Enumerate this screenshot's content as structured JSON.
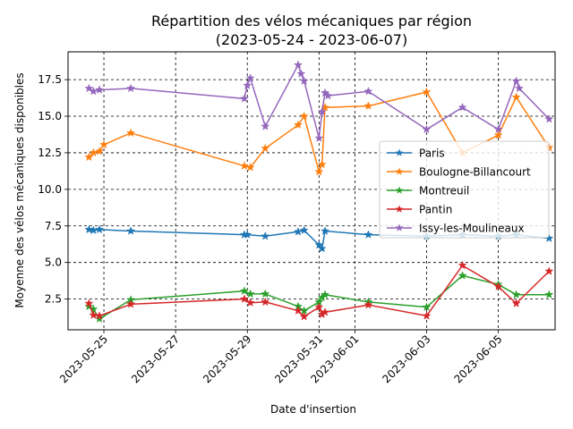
{
  "chart_data": {
    "type": "line",
    "title": "Répartition des vélos mécaniques par région",
    "subtitle": "(2023-05-24 - 2023-06-07)",
    "xlabel": "Date d'insertion",
    "ylabel": "Moyenne des vélos mécaniques disponibles",
    "x_ticks": [
      "2023-05-25",
      "2023-05-27",
      "2023-05-29",
      "2023-05-31",
      "2023-06-01",
      "2023-06-03",
      "2023-06-05"
    ],
    "y_ticks": [
      "2.5",
      "5.0",
      "7.5",
      "10.0",
      "12.5",
      "15.0",
      "17.5"
    ],
    "xlim": [
      "2023-05-24 00:00",
      "2023-06-06 14:00"
    ],
    "ylim": [
      0.4,
      19.4
    ],
    "grid": true,
    "grid_style": "dashed",
    "legend_position": "center-right",
    "marker": "star",
    "series": [
      {
        "name": "Paris",
        "color": "#1f77b4",
        "points": [
          [
            "2023-05-24 14:00",
            7.25
          ],
          [
            "2023-05-24 17:00",
            7.2
          ],
          [
            "2023-05-24 21:00",
            7.25
          ],
          [
            "2023-05-25 18:00",
            7.15
          ],
          [
            "2023-05-28 22:00",
            6.9
          ],
          [
            "2023-05-29 00:00",
            6.9
          ],
          [
            "2023-05-29 12:00",
            6.8
          ],
          [
            "2023-05-30 10:00",
            7.1
          ],
          [
            "2023-05-30 14:00",
            7.2
          ],
          [
            "2023-05-31 00:00",
            6.2
          ],
          [
            "2023-05-31 02:00",
            5.95
          ],
          [
            "2023-05-31 04:00",
            7.15
          ],
          [
            "2023-06-01 09:00",
            6.9
          ],
          [
            "2023-06-03 00:00",
            6.8
          ],
          [
            "2023-06-04 00:00",
            6.9
          ],
          [
            "2023-06-05 00:00",
            6.8
          ],
          [
            "2023-06-05 12:00",
            6.9
          ],
          [
            "2023-06-06 10:00",
            6.65
          ]
        ]
      },
      {
        "name": "Boulogne-Billancourt",
        "color": "#ff7f0e",
        "points": [
          [
            "2023-05-24 14:00",
            12.2
          ],
          [
            "2023-05-24 17:00",
            12.5
          ],
          [
            "2023-05-24 21:00",
            12.6
          ],
          [
            "2023-05-25 00:00",
            13.05
          ],
          [
            "2023-05-25 18:00",
            13.85
          ],
          [
            "2023-05-28 22:00",
            11.6
          ],
          [
            "2023-05-29 02:00",
            11.5
          ],
          [
            "2023-05-29 12:00",
            12.8
          ],
          [
            "2023-05-30 10:00",
            14.4
          ],
          [
            "2023-05-30 14:00",
            15.0
          ],
          [
            "2023-05-31 00:00",
            11.2
          ],
          [
            "2023-05-31 02:00",
            11.7
          ],
          [
            "2023-05-31 04:00",
            15.6
          ],
          [
            "2023-06-01 09:00",
            15.7
          ],
          [
            "2023-06-03 00:00",
            16.65
          ],
          [
            "2023-06-04 00:00",
            12.5
          ],
          [
            "2023-06-05 00:00",
            13.7
          ],
          [
            "2023-06-05 12:00",
            16.3
          ],
          [
            "2023-06-06 10:00",
            12.85
          ]
        ]
      },
      {
        "name": "Montreuil",
        "color": "#2ca02c",
        "points": [
          [
            "2023-05-24 14:00",
            2.0
          ],
          [
            "2023-05-24 17:00",
            1.8
          ],
          [
            "2023-05-24 21:00",
            1.15
          ],
          [
            "2023-05-25 18:00",
            2.45
          ],
          [
            "2023-05-28 22:00",
            3.05
          ],
          [
            "2023-05-29 02:00",
            2.85
          ],
          [
            "2023-05-29 12:00",
            2.85
          ],
          [
            "2023-05-30 10:00",
            2.0
          ],
          [
            "2023-05-30 14:00",
            1.7
          ],
          [
            "2023-05-31 00:00",
            2.3
          ],
          [
            "2023-05-31 02:00",
            2.6
          ],
          [
            "2023-05-31 04:00",
            2.8
          ],
          [
            "2023-06-01 09:00",
            2.3
          ],
          [
            "2023-06-03 00:00",
            1.95
          ],
          [
            "2023-06-04 00:00",
            4.1
          ],
          [
            "2023-06-05 00:00",
            3.5
          ],
          [
            "2023-06-05 12:00",
            2.8
          ],
          [
            "2023-06-06 10:00",
            2.8
          ]
        ]
      },
      {
        "name": "Pantin",
        "color": "#d62728",
        "points": [
          [
            "2023-05-24 14:00",
            2.2
          ],
          [
            "2023-05-24 17:00",
            1.4
          ],
          [
            "2023-05-24 21:00",
            1.35
          ],
          [
            "2023-05-25 18:00",
            2.15
          ],
          [
            "2023-05-28 22:00",
            2.5
          ],
          [
            "2023-05-29 02:00",
            2.25
          ],
          [
            "2023-05-29 12:00",
            2.3
          ],
          [
            "2023-05-30 10:00",
            1.7
          ],
          [
            "2023-05-30 14:00",
            1.3
          ],
          [
            "2023-05-31 00:00",
            1.95
          ],
          [
            "2023-05-31 02:00",
            1.45
          ],
          [
            "2023-05-31 04:00",
            1.6
          ],
          [
            "2023-06-01 09:00",
            2.1
          ],
          [
            "2023-06-03 00:00",
            1.35
          ],
          [
            "2023-06-04 00:00",
            4.8
          ],
          [
            "2023-06-05 00:00",
            3.35
          ],
          [
            "2023-06-05 12:00",
            2.2
          ],
          [
            "2023-06-06 10:00",
            4.4
          ]
        ]
      },
      {
        "name": "Issy-les-Moulineaux",
        "color": "#9467bd",
        "points": [
          [
            "2023-05-24 14:00",
            16.9
          ],
          [
            "2023-05-24 17:00",
            16.7
          ],
          [
            "2023-05-24 21:00",
            16.8
          ],
          [
            "2023-05-25 18:00",
            16.9
          ],
          [
            "2023-05-28 22:00",
            16.2
          ],
          [
            "2023-05-29 00:00",
            17.1
          ],
          [
            "2023-05-29 02:00",
            17.6
          ],
          [
            "2023-05-29 12:00",
            14.3
          ],
          [
            "2023-05-30 10:00",
            18.5
          ],
          [
            "2023-05-30 12:00",
            17.9
          ],
          [
            "2023-05-30 14:00",
            17.4
          ],
          [
            "2023-05-31 00:00",
            13.5
          ],
          [
            "2023-05-31 02:00",
            15.3
          ],
          [
            "2023-05-31 04:00",
            16.6
          ],
          [
            "2023-05-31 06:00",
            16.4
          ],
          [
            "2023-06-01 09:00",
            16.7
          ],
          [
            "2023-06-03 00:00",
            14.1
          ],
          [
            "2023-06-04 00:00",
            15.6
          ],
          [
            "2023-06-05 00:00",
            14.1
          ],
          [
            "2023-06-05 12:00",
            17.4
          ],
          [
            "2023-06-05 14:00",
            16.9
          ],
          [
            "2023-06-06 10:00",
            14.8
          ]
        ]
      }
    ]
  }
}
